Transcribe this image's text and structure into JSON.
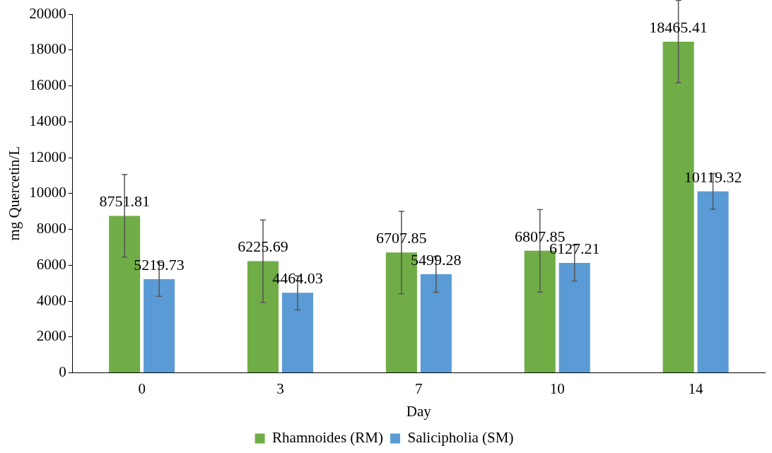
{
  "chart_data": {
    "type": "bar",
    "xlabel": "Day",
    "ylabel": "mg Quercetin/L",
    "categories": [
      "0",
      "3",
      "7",
      "10",
      "14"
    ],
    "series": [
      {
        "name": "Rhamnoides (RM)",
        "color": "#70ad47",
        "values": [
          8751.81,
          6225.69,
          6707.85,
          6807.85,
          18465.41
        ],
        "errors": [
          2300,
          2300,
          2300,
          2300,
          2300
        ]
      },
      {
        "name": "Salicipholia (SM)",
        "color": "#5b9bd5",
        "values": [
          5219.73,
          4464.03,
          5499.28,
          6127.21,
          10119.32
        ],
        "errors": [
          950,
          950,
          1000,
          1000,
          1000
        ]
      }
    ],
    "ylim": [
      0,
      20000
    ],
    "yticks": [
      0,
      2000,
      4000,
      6000,
      8000,
      10000,
      12000,
      14000,
      16000,
      18000,
      20000
    ],
    "grid": false,
    "legend": "bottom",
    "data_labels": true
  }
}
